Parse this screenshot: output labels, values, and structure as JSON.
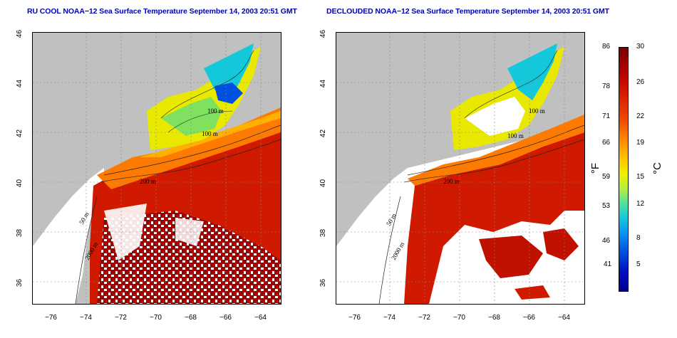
{
  "titles": {
    "left": "RU COOL NOAA−12 Sea Surface Temperature September 14, 2003 20:51 GMT",
    "right": "DECLOUDED NOAA−12 Sea Surface Temperature September 14, 2003 20:51 GMT"
  },
  "axes": {
    "x_ticks": [
      "−76",
      "−74",
      "−72",
      "−70",
      "−68",
      "−66",
      "−64"
    ],
    "y_ticks": [
      "46",
      "44",
      "42",
      "40",
      "38",
      "36"
    ]
  },
  "isobaths": {
    "contour_100": "100 m",
    "contour_200": "200 m",
    "contour_50": "50 m",
    "contour_2000": "2000 m"
  },
  "colorbar": {
    "fahrenheit_unit": "°F",
    "celsius_unit": "°C",
    "fahrenheit_ticks": [
      "86",
      "78",
      "71",
      "66",
      "59",
      "53",
      "46",
      "41"
    ],
    "celsius_ticks": [
      "30",
      "26",
      "22",
      "19",
      "15",
      "12",
      "8",
      "5"
    ]
  },
  "colors": {
    "land": "#c0c0c0",
    "title": "#0000b4",
    "warm": "#d01a00",
    "cold": "#0a96f0"
  }
}
